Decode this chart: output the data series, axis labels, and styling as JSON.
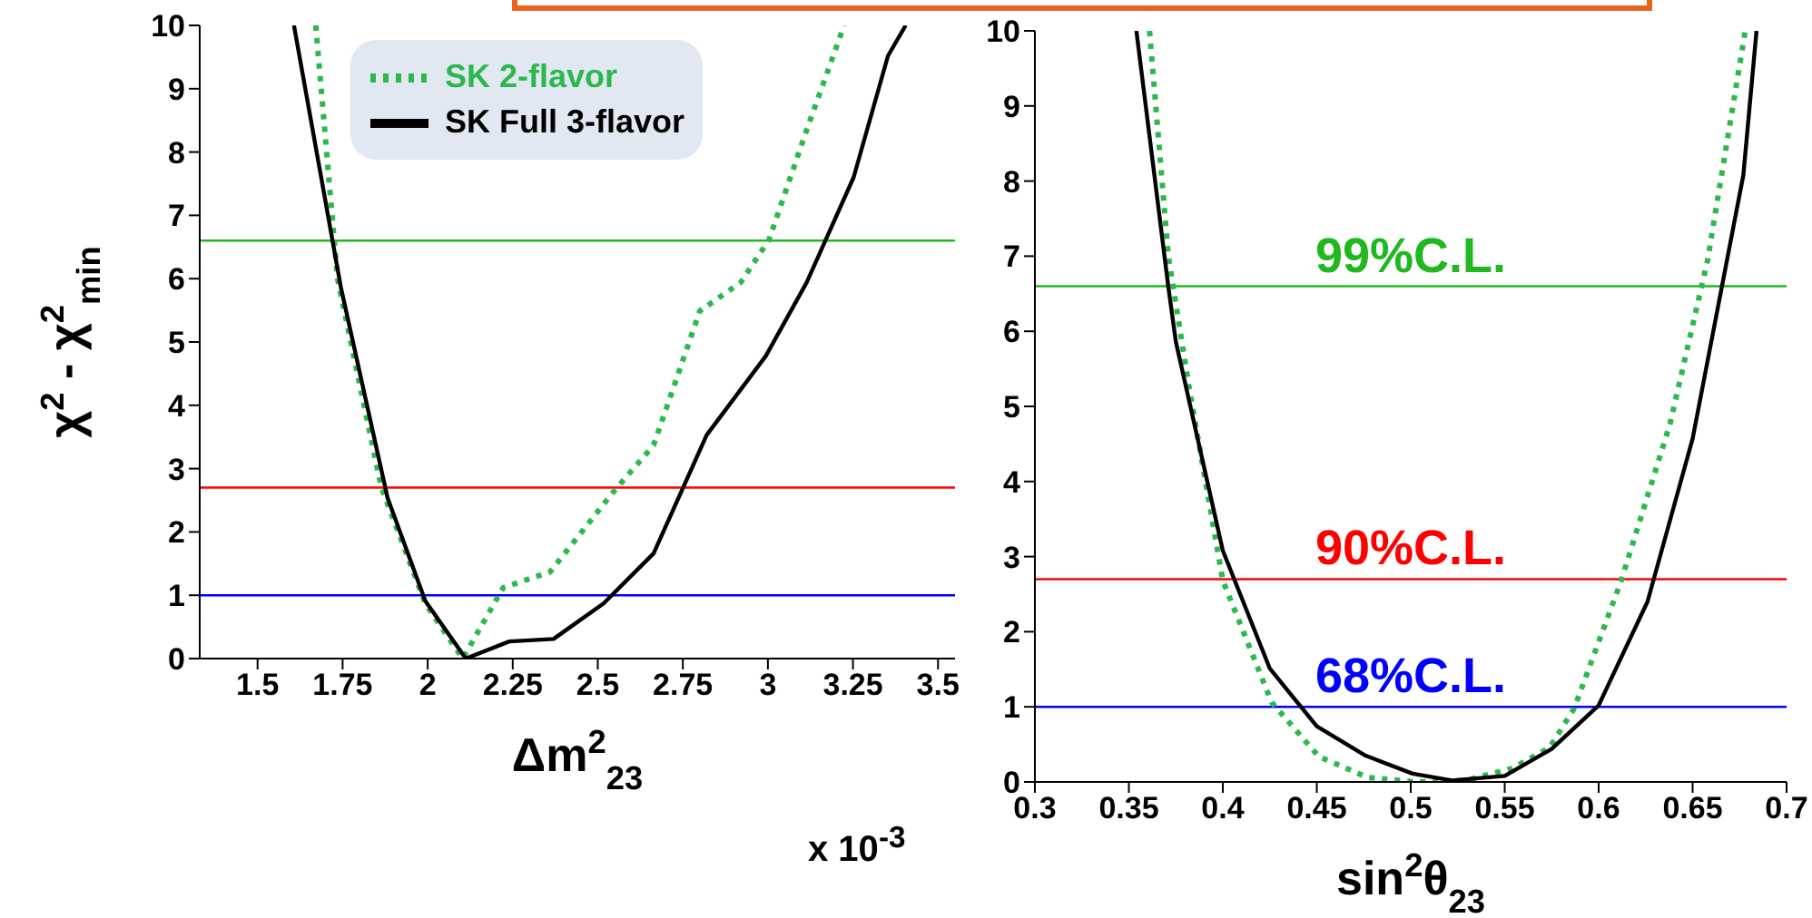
{
  "chart_data": [
    {
      "type": "line",
      "xlabel": "Δm$^{2}$$_{23}$",
      "ylabel": "χ$^{2}$ - χ$^{2}$$_{min}$",
      "annotations": [
        "x 10$^{-3}$"
      ],
      "xlim": [
        1.33,
        3.55
      ],
      "xticks": [
        1.5,
        1.75,
        2,
        2.25,
        2.5,
        2.75,
        3,
        3.25,
        3.5
      ],
      "ylim": [
        0,
        10
      ],
      "yticks": [
        0,
        1,
        2,
        3,
        4,
        5,
        6,
        7,
        8,
        9,
        10
      ],
      "legend": "top left",
      "series": [
        {
          "name": "SK 2-flavor",
          "color": "#2db84d",
          "line_style": "dotted",
          "x": [
            1.671,
            1.735,
            1.864,
            1.993,
            2.103,
            2.222,
            2.36,
            2.544,
            2.664,
            2.8,
            2.92,
            3.003,
            3.114,
            3.224
          ],
          "values": [
            10,
            6.0,
            2.7,
            0.87,
            0,
            1.12,
            1.37,
            2.62,
            3.37,
            5.49,
            5.94,
            6.61,
            8.35,
            10
          ]
        },
        {
          "name": "SK Full 3-flavor",
          "color": "#000000",
          "line_style": "solid",
          "x": [
            1.607,
            1.745,
            1.882,
            1.993,
            2.112,
            2.24,
            2.37,
            2.517,
            2.664,
            2.82,
            2.994,
            3.114,
            3.252,
            3.353,
            3.405
          ],
          "values": [
            10,
            5.86,
            2.54,
            0.91,
            0,
            0.27,
            0.31,
            0.87,
            1.66,
            3.53,
            4.78,
            5.94,
            7.6,
            9.52,
            10
          ]
        }
      ],
      "ref_lines": [
        {
          "axis": "y",
          "value": 6.6,
          "color": "#1fb81f"
        },
        {
          "axis": "y",
          "value": 2.7,
          "color": "#ff0000"
        },
        {
          "axis": "y",
          "value": 1,
          "color": "#0000ff"
        }
      ]
    },
    {
      "type": "line",
      "xlabel": "sin$^{2}$θ$_{23}$",
      "xlim": [
        0.3,
        0.7
      ],
      "xticks": [
        0.3,
        0.35,
        0.4,
        0.45,
        0.5,
        0.55,
        0.6,
        0.65,
        0.7
      ],
      "ylim": [
        0,
        10
      ],
      "yticks": [
        0,
        1,
        2,
        3,
        4,
        5,
        6,
        7,
        8,
        9,
        10
      ],
      "series": [
        {
          "color": "#2db84d",
          "line_style": "dotted",
          "x": [
            0.361,
            0.371,
            0.382,
            0.4,
            0.426,
            0.451,
            0.477,
            0.503,
            0.529,
            0.554,
            0.574,
            0.587,
            0.612,
            0.638,
            0.658,
            0.678
          ],
          "values": [
            10,
            7.0,
            5.26,
            2.68,
            1.06,
            0.34,
            0.06,
            0,
            0.02,
            0.18,
            0.46,
            0.98,
            2.68,
            4.77,
            6.95,
            10
          ]
        },
        {
          "color": "#000000",
          "line_style": "solid",
          "x": [
            0.354,
            0.371,
            0.375,
            0.4,
            0.425,
            0.45,
            0.476,
            0.501,
            0.522,
            0.55,
            0.575,
            0.6,
            0.626,
            0.65,
            0.677,
            0.684
          ],
          "values": [
            10,
            6.59,
            5.86,
            3.08,
            1.51,
            0.74,
            0.35,
            0.11,
            0.02,
            0.08,
            0.44,
            1.02,
            2.4,
            4.57,
            8.08,
            10
          ]
        }
      ],
      "ref_lines": [
        {
          "axis": "y",
          "value": 6.6,
          "label": "99%C.L.",
          "color": "#1fb81f"
        },
        {
          "axis": "y",
          "value": 2.7,
          "label": "90%C.L.",
          "color": "#ff0000"
        },
        {
          "axis": "y",
          "value": 1,
          "label": "68%C.L.",
          "color": "#0000ff"
        }
      ]
    }
  ]
}
